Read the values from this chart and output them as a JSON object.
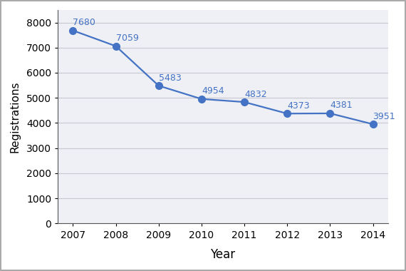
{
  "years": [
    2007,
    2008,
    2009,
    2010,
    2011,
    2012,
    2013,
    2014
  ],
  "values": [
    7680,
    7059,
    5483,
    4954,
    4832,
    4373,
    4381,
    3951
  ],
  "line_color": "#4472C4",
  "marker_color": "#4472C4",
  "xlabel": "Year",
  "ylabel": "Registrations",
  "ylim": [
    0,
    8500
  ],
  "yticks": [
    0,
    1000,
    2000,
    3000,
    4000,
    5000,
    6000,
    7000,
    8000
  ],
  "label_color": "#4472C4",
  "grid_color": "#c8c8d0",
  "plot_bg_color": "#eef0f5",
  "figure_bg_color": "#ffffff",
  "border_color": "#aaaaaa",
  "spine_color": "#555555",
  "xlabel_fontsize": 12,
  "ylabel_fontsize": 11,
  "tick_fontsize": 10,
  "annotation_fontsize": 9,
  "marker_size": 7,
  "line_width": 1.6
}
